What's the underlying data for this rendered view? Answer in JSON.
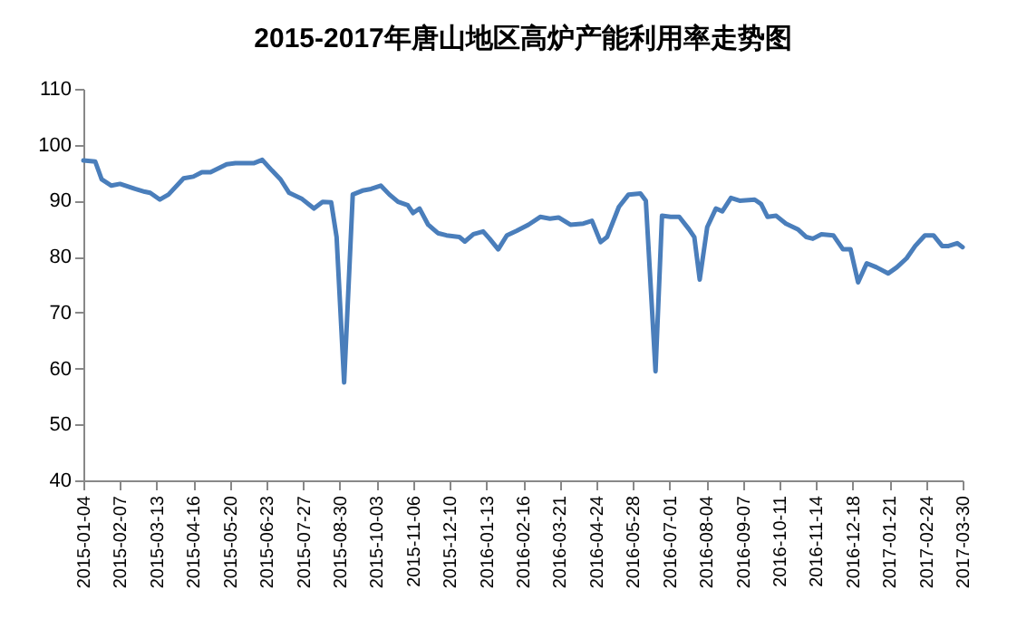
{
  "chart_data": {
    "type": "line",
    "title": "2015-2017年唐山地区高炉产能利用率走势图",
    "x": [
      "2015-01-04",
      "2015-01-15",
      "2015-01-21",
      "2015-01-30",
      "2015-02-07",
      "2015-02-21",
      "2015-03-02",
      "2015-03-07",
      "2015-03-16",
      "2015-03-24",
      "2015-04-07",
      "2015-04-16",
      "2015-04-24",
      "2015-05-02",
      "2015-05-17",
      "2015-05-25",
      "2015-06-11",
      "2015-06-19",
      "2015-06-28",
      "2015-07-06",
      "2015-07-14",
      "2015-07-26",
      "2015-08-06",
      "2015-08-14",
      "2015-08-22",
      "2015-08-27",
      "2015-09-03",
      "2015-09-11",
      "2015-09-20",
      "2015-09-28",
      "2015-10-07",
      "2015-10-15",
      "2015-10-23",
      "2015-11-01",
      "2015-11-06",
      "2015-11-12",
      "2015-11-20",
      "2015-11-29",
      "2015-12-07",
      "2015-12-19",
      "2015-12-24",
      "2016-01-01",
      "2016-01-10",
      "2016-01-16",
      "2016-01-24",
      "2016-02-01",
      "2016-02-10",
      "2016-02-21",
      "2016-03-03",
      "2016-03-12",
      "2016-03-20",
      "2016-03-31",
      "2016-04-12",
      "2016-04-20",
      "2016-04-28",
      "2016-05-04",
      "2016-05-15",
      "2016-05-24",
      "2016-06-04",
      "2016-06-09",
      "2016-06-18",
      "2016-06-24",
      "2016-07-02",
      "2016-07-10",
      "2016-07-19",
      "2016-07-24",
      "2016-07-29",
      "2016-08-05",
      "2016-08-13",
      "2016-08-19",
      "2016-08-27",
      "2016-09-04",
      "2016-09-18",
      "2016-09-24",
      "2016-09-30",
      "2016-10-08",
      "2016-10-17",
      "2016-10-28",
      "2016-11-05",
      "2016-11-11",
      "2016-11-19",
      "2016-11-30",
      "2016-12-09",
      "2016-12-16",
      "2016-12-23",
      "2016-12-31",
      "2017-01-09",
      "2017-01-20",
      "2017-01-28",
      "2017-02-06",
      "2017-02-14",
      "2017-02-23",
      "2017-03-03",
      "2017-03-11",
      "2017-03-17",
      "2017-03-25",
      "2017-03-30"
    ],
    "series": [
      {
        "color": "#4a7ebb",
        "values": [
          97.2,
          97.0,
          93.8,
          92.7,
          93.0,
          92.1,
          91.6,
          91.4,
          90.2,
          91.1,
          94.0,
          94.3,
          95.1,
          95.1,
          96.5,
          96.7,
          96.7,
          97.3,
          95.4,
          93.8,
          91.4,
          90.3,
          88.6,
          89.8,
          89.7,
          83.5,
          57.5,
          91.1,
          91.8,
          92.1,
          92.7,
          91.1,
          89.8,
          89.2,
          87.8,
          88.6,
          85.7,
          84.2,
          83.8,
          83.5,
          82.7,
          84.0,
          84.5,
          83.2,
          81.3,
          83.8,
          84.6,
          85.7,
          87.1,
          86.8,
          87.0,
          85.7,
          85.9,
          86.4,
          82.6,
          83.5,
          88.9,
          91.1,
          91.3,
          90.0,
          59.5,
          87.3,
          87.1,
          87.1,
          84.9,
          83.5,
          75.9,
          85.3,
          88.6,
          88.1,
          90.5,
          90.0,
          90.2,
          89.4,
          87.1,
          87.3,
          85.9,
          84.9,
          83.5,
          83.2,
          84.0,
          83.8,
          81.3,
          81.3,
          75.4,
          78.8,
          78.1,
          77.0,
          78.1,
          79.7,
          81.9,
          83.8,
          83.8,
          81.9,
          81.9,
          82.4,
          81.7
        ]
      }
    ],
    "xlim": [
      "2015-01-04",
      "2017-03-30"
    ],
    "xticks": [
      "2015-01-04",
      "2015-02-07",
      "2015-03-13",
      "2015-04-16",
      "2015-05-20",
      "2015-06-23",
      "2015-07-27",
      "2015-08-30",
      "2015-10-03",
      "2015-11-06",
      "2015-12-10",
      "2016-01-13",
      "2016-02-16",
      "2016-03-21",
      "2016-04-24",
      "2016-05-28",
      "2016-07-01",
      "2016-08-04",
      "2016-09-07",
      "2016-10-11",
      "2016-11-14",
      "2016-12-18",
      "2017-01-21",
      "2017-02-24",
      "2017-03-30"
    ],
    "ylim": [
      40,
      110
    ],
    "yticks": [
      40,
      50,
      60,
      70,
      80,
      90,
      100,
      110
    ],
    "grid": false,
    "marker": "none",
    "line_style": "solid"
  }
}
